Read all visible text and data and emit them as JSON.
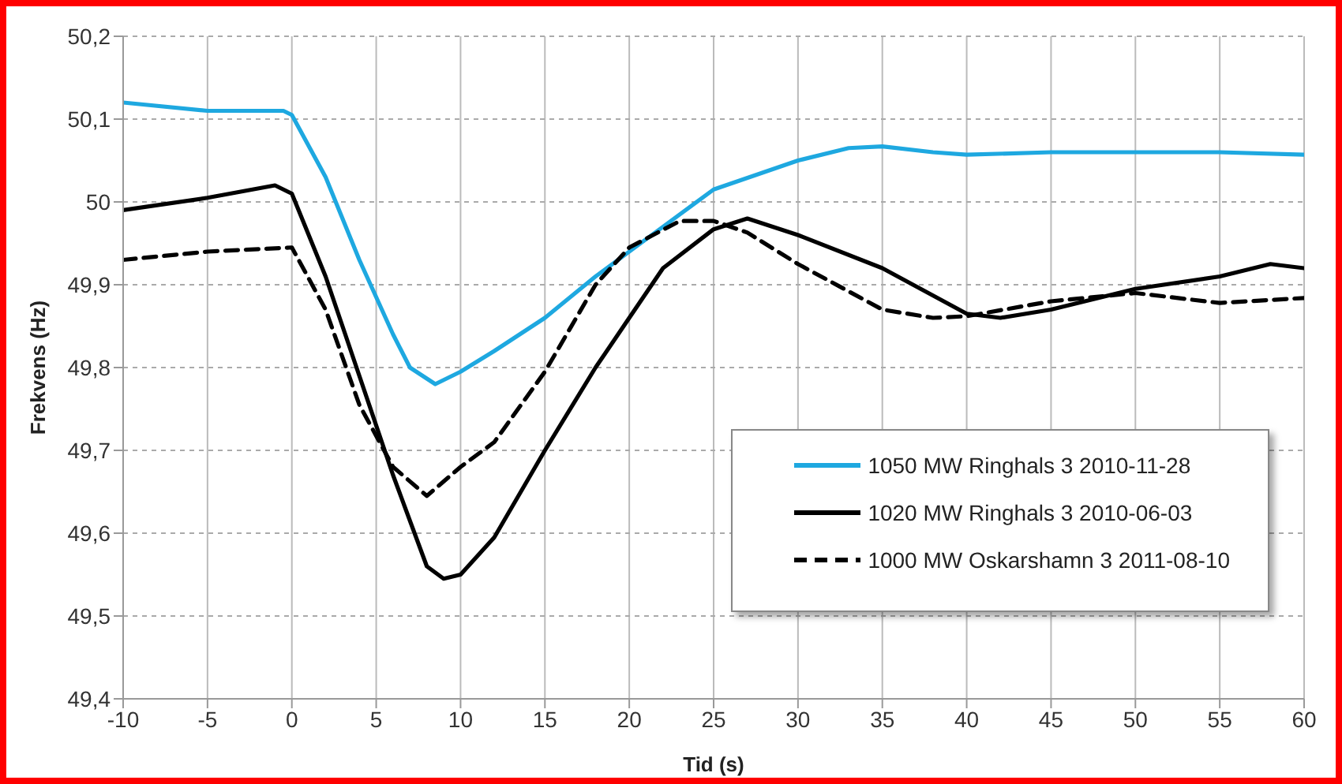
{
  "chart_data": {
    "type": "line",
    "xlabel": "Tid (s)",
    "ylabel": "Frekvens (Hz)",
    "xlim": [
      -10,
      60
    ],
    "xticks": [
      -10,
      -5,
      0,
      5,
      10,
      15,
      20,
      25,
      30,
      35,
      40,
      45,
      50,
      55,
      60
    ],
    "ylim": [
      49.4,
      50.2
    ],
    "yticks": [
      {
        "value": 49.4,
        "label": "49,4"
      },
      {
        "value": 49.5,
        "label": "49,5"
      },
      {
        "value": 49.6,
        "label": "49,6"
      },
      {
        "value": 49.7,
        "label": "49,7"
      },
      {
        "value": 49.8,
        "label": "49,8"
      },
      {
        "value": 49.9,
        "label": "49,9"
      },
      {
        "value": 50,
        "label": "50"
      },
      {
        "value": 50.1,
        "label": "50,1"
      },
      {
        "value": 50.2,
        "label": "50,2"
      }
    ],
    "grid": true,
    "legend": "bottom right",
    "marker": "none",
    "series": [
      {
        "name": "1050 MW Ringhals 3 2010-11-28",
        "color": "#1ea8e0",
        "line_style": "solid",
        "x": [
          -10,
          -5,
          -0.5,
          0,
          2,
          4,
          6,
          7,
          8.5,
          10,
          12,
          15,
          18,
          20,
          22,
          25,
          30,
          33,
          35,
          38,
          40,
          45,
          50,
          55,
          60
        ],
        "values": [
          50.12,
          50.11,
          50.11,
          50.105,
          50.03,
          49.93,
          49.84,
          49.8,
          49.78,
          49.795,
          49.82,
          49.86,
          49.91,
          49.94,
          49.97,
          50.015,
          50.05,
          50.065,
          50.067,
          50.06,
          50.057,
          50.06,
          50.06,
          50.06,
          50.057
        ]
      },
      {
        "name": "1020 MW Ringhals 3 2010-06-03",
        "color": "#000000",
        "line_style": "solid",
        "x": [
          -10,
          -5,
          -1,
          0,
          2,
          4,
          6,
          8,
          9,
          10,
          12,
          15,
          18,
          20,
          22,
          25,
          27,
          30,
          35,
          40,
          42,
          45,
          50,
          55,
          58,
          60
        ],
        "values": [
          49.99,
          50.005,
          50.02,
          50.01,
          49.91,
          49.79,
          49.67,
          49.56,
          49.545,
          49.55,
          49.595,
          49.7,
          49.8,
          49.86,
          49.92,
          49.967,
          49.98,
          49.96,
          49.92,
          49.865,
          49.86,
          49.87,
          49.895,
          49.91,
          49.925,
          49.92
        ]
      },
      {
        "name": "1000 MW Oskarshamn 3 2011-08-10",
        "color": "#000000",
        "line_style": "dashed",
        "x": [
          -10,
          -5,
          0,
          2,
          4,
          6,
          8,
          10,
          12,
          15,
          18,
          20,
          23,
          25,
          27,
          30,
          35,
          38,
          40,
          45,
          50,
          55,
          60
        ],
        "values": [
          49.93,
          49.94,
          49.945,
          49.87,
          49.755,
          49.68,
          49.645,
          49.68,
          49.71,
          49.795,
          49.9,
          49.945,
          49.977,
          49.977,
          49.963,
          49.925,
          49.87,
          49.86,
          49.862,
          49.88,
          49.89,
          49.878,
          49.884
        ]
      }
    ]
  }
}
